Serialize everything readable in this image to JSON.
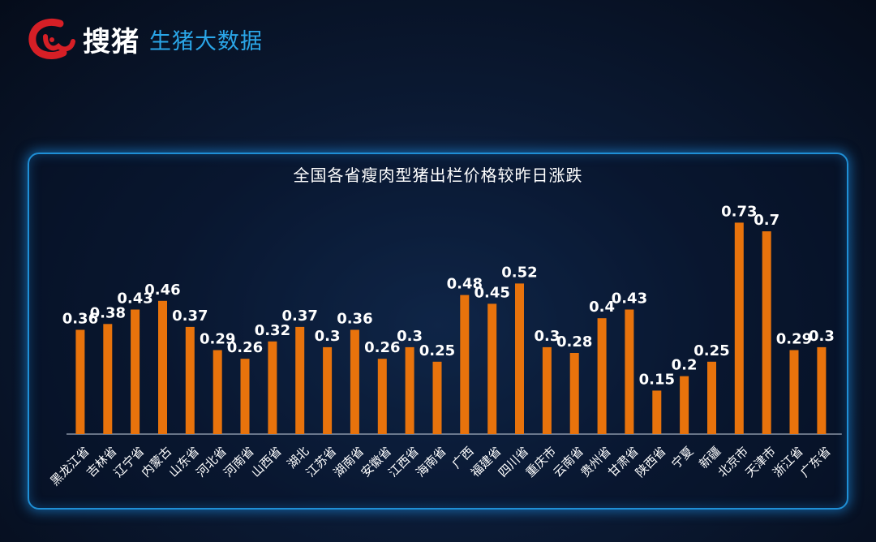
{
  "brand": {
    "name": "搜猪",
    "subtitle": "生猪大数据"
  },
  "chart_data": {
    "type": "bar",
    "title": "全国各省瘦肉型猪出栏价格较昨日涨跌",
    "xlabel": "",
    "ylabel": "",
    "ylim": [
      0,
      0.8
    ],
    "grid": false,
    "categories": [
      "黑龙江省",
      "吉林省",
      "辽宁省",
      "内蒙古",
      "山东省",
      "河北省",
      "河南省",
      "山西省",
      "湖北",
      "江苏省",
      "湖南省",
      "安徽省",
      "江西省",
      "海南省",
      "广西",
      "福建省",
      "四川省",
      "重庆市",
      "云南省",
      "贵州省",
      "甘肃省",
      "陕西省",
      "宁夏",
      "新疆",
      "北京市",
      "天津市",
      "浙江省",
      "广东省"
    ],
    "values": [
      0.36,
      0.38,
      0.43,
      0.46,
      0.37,
      0.29,
      0.26,
      0.32,
      0.37,
      0.3,
      0.36,
      0.26,
      0.3,
      0.25,
      0.48,
      0.45,
      0.52,
      0.3,
      0.28,
      0.4,
      0.43,
      0.15,
      0.2,
      0.25,
      0.73,
      0.7,
      0.29,
      0.3
    ],
    "colors": {
      "bar": "#e8730c",
      "label": "#ffffff",
      "axis": "#c8d2e0"
    }
  }
}
